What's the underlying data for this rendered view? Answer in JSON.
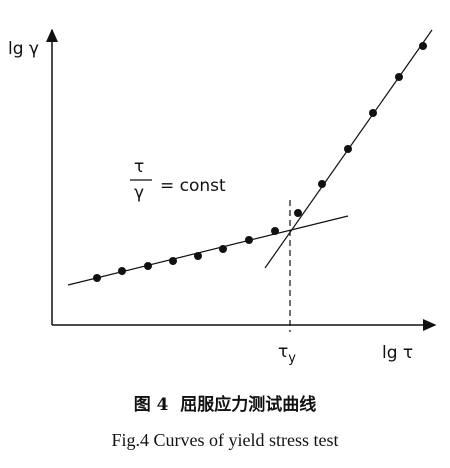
{
  "y_axis_label": "lg γ",
  "x_axis_label": "lg τ",
  "annotation": {
    "numerator": "τ",
    "denominator": "γ",
    "rest": "= const"
  },
  "yield_label": {
    "symbol": "τ",
    "subscript": "y"
  },
  "caption": {
    "chinese": "图 4  屈服应力测试曲线",
    "english": "Fig.4 Curves of yield stress test"
  }
}
